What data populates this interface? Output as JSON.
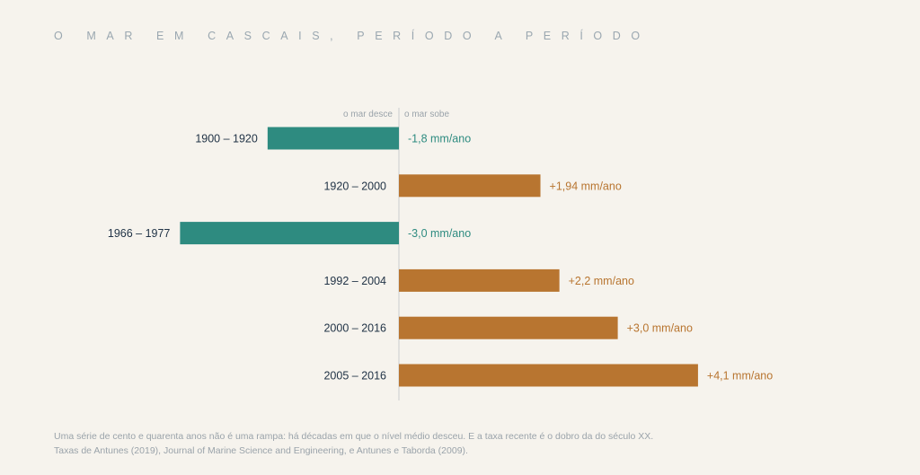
{
  "title": "O MAR EM CASCAIS, PERÍODO A PERÍODO",
  "chart_data": {
    "type": "bar",
    "orientation": "horizontal",
    "axis_labels": {
      "negative": "o mar desce",
      "positive": "o mar sobe"
    },
    "categories": [
      "1900 – 1920",
      "1920 – 2000",
      "1966 – 1977",
      "1992 – 2004",
      "2000 – 2016",
      "2005 – 2016"
    ],
    "values": [
      -1.8,
      1.94,
      -3.0,
      2.2,
      3.0,
      4.1
    ],
    "value_labels": [
      "-1,8 mm/ano",
      "+1,94 mm/ano",
      "-3,0 mm/ano",
      "+2,2 mm/ano",
      "+3,0 mm/ano",
      "+4,1 mm/ano"
    ],
    "unit": "mm/ano",
    "colors": {
      "negative": "#2e8b80",
      "positive": "#b87530"
    }
  },
  "footer": {
    "note": "Uma série de cento e quarenta anos não é uma rampa: há décadas em que o nível médio desceu. E a taxa recente é o dobro da do século XX.",
    "source": "Taxas de Antunes (2019), Journal of Marine Science and Engineering, e Antunes e Taborda (2009)."
  }
}
